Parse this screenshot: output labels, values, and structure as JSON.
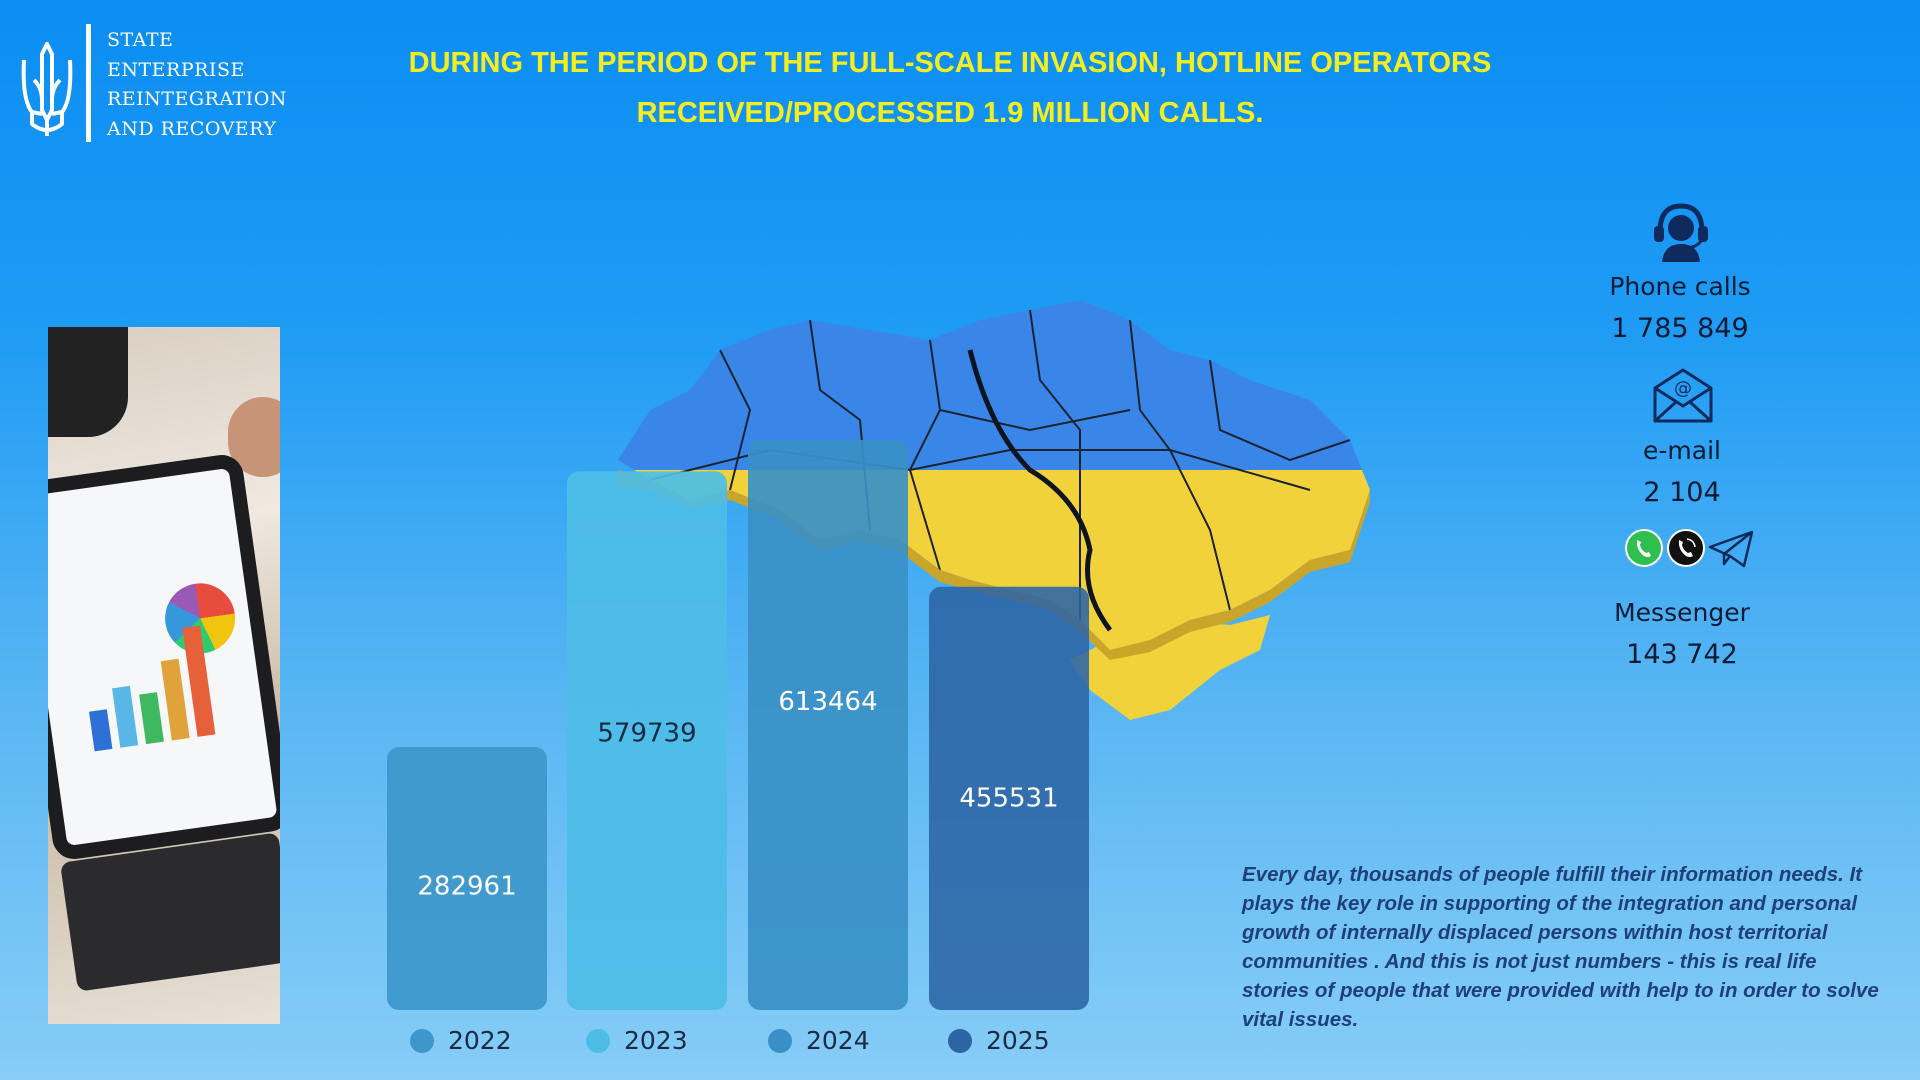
{
  "logo": {
    "lines": [
      "STATE",
      "ENTERPRISE",
      "REINTEGRATION",
      "AND RECOVERY"
    ]
  },
  "headline": {
    "line1": "DURING THE PERIOD OF THE FULL-SCALE INVASION, HOTLINE OPERATORS",
    "line2": "RECEIVED/PROCESSED 1.9 MILLION CALLS."
  },
  "chart_data": {
    "type": "bar",
    "title": "",
    "xlabel": "",
    "ylabel": "",
    "categories": [
      "2022",
      "2023",
      "2024",
      "2025"
    ],
    "values": [
      282961,
      579739,
      613464,
      455531
    ],
    "colors": [
      "#3d97ca",
      "#4dbde6",
      "#3990c6",
      "#2c64a5"
    ],
    "ylim": [
      0,
      613464
    ],
    "grid": false,
    "legend": "bottom"
  },
  "stats": [
    {
      "label": "Phone calls",
      "value": "1 785 849",
      "icon": "headset-operator-icon"
    },
    {
      "label": "e-mail",
      "value": "2 104",
      "icon": "envelope-at-icon"
    },
    {
      "label": "Messenger",
      "value": "143 742",
      "icon": "messenger-icons"
    }
  ],
  "paragraph": "Every day, thousands of people  fulfill   their information needs. It plays the key role in supporting of the integration and  personal growth of internally displaced persons within host territorial communities . And this is not just numbers  - this is real life stories of people that were provided with help to in order to solve vital issues.",
  "colors": {
    "headline": "#f4ee1e",
    "map_top": "#2f7fe8",
    "map_bottom": "#f2d23a",
    "paragraph": "#1f3f78"
  }
}
